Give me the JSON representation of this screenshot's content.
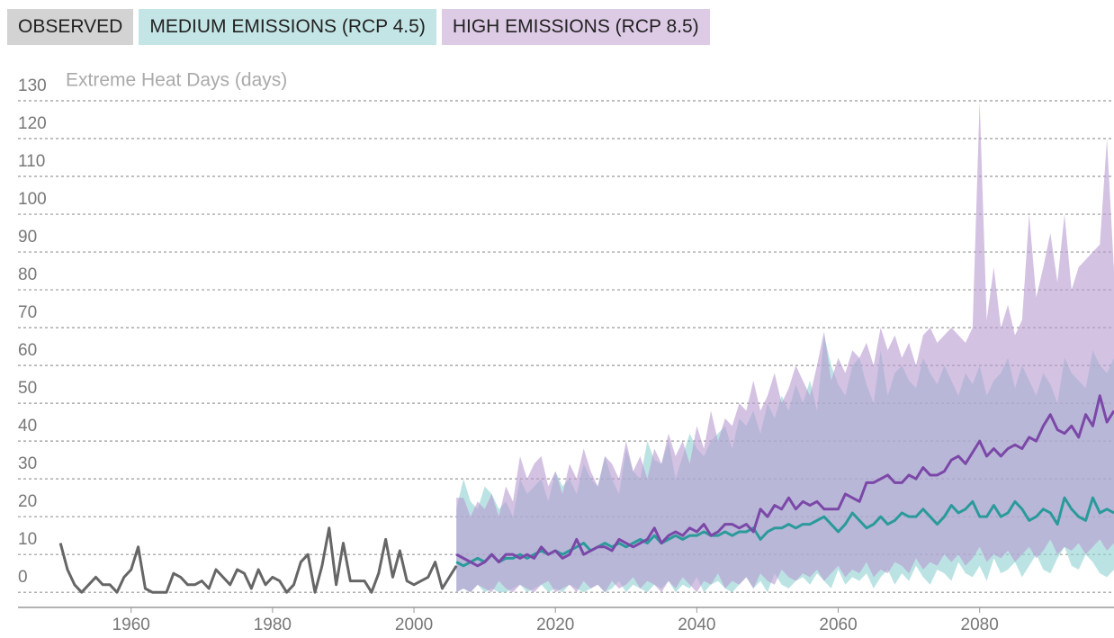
{
  "chart_data": {
    "type": "line",
    "y_axis_label": "Extreme Heat Days (days)",
    "xlim": [
      1944,
      2099
    ],
    "xticks": [
      1960,
      1980,
      2000,
      2020,
      2040,
      2060,
      2080
    ],
    "ylim": [
      -4,
      130
    ],
    "yticks": [
      0,
      10,
      20,
      30,
      40,
      50,
      60,
      70,
      80,
      90,
      100,
      110,
      120,
      130
    ],
    "grid": true,
    "series": [
      {
        "name": "OBSERVED",
        "color": "#666666",
        "legend_color": "#d3d3d3",
        "x": [
          1950,
          1951,
          1952,
          1953,
          1954,
          1955,
          1956,
          1957,
          1958,
          1959,
          1960,
          1961,
          1962,
          1963,
          1964,
          1965,
          1966,
          1967,
          1968,
          1969,
          1970,
          1971,
          1972,
          1973,
          1974,
          1975,
          1976,
          1977,
          1978,
          1979,
          1980,
          1981,
          1982,
          1983,
          1984,
          1985,
          1986,
          1987,
          1988,
          1989,
          1990,
          1991,
          1992,
          1993,
          1994,
          1995,
          1996,
          1997,
          1998,
          1999,
          2000,
          2001,
          2002,
          2003,
          2004,
          2005,
          2006
        ],
        "values": [
          13,
          6,
          2,
          0,
          2,
          4,
          2,
          2,
          0,
          4,
          6,
          12,
          1,
          0,
          0,
          0,
          5,
          4,
          2,
          2,
          3,
          1,
          6,
          4,
          2,
          6,
          5,
          1,
          6,
          2,
          4,
          3,
          0,
          2,
          8,
          10,
          0,
          7,
          17,
          2,
          13,
          3,
          3,
          3,
          0,
          5,
          14,
          4,
          11,
          3,
          2,
          3,
          4,
          8,
          1,
          4,
          7
        ]
      },
      {
        "name": "MEDIUM EMISSIONS (RCP 4.5)",
        "color": "#2a9a9a",
        "fill": "#8fd0d0",
        "legend_color": "#c4e5e5",
        "x": [
          2006,
          2007,
          2008,
          2009,
          2010,
          2011,
          2012,
          2013,
          2014,
          2015,
          2016,
          2017,
          2018,
          2019,
          2020,
          2021,
          2022,
          2023,
          2024,
          2025,
          2026,
          2027,
          2028,
          2029,
          2030,
          2031,
          2032,
          2033,
          2034,
          2035,
          2036,
          2037,
          2038,
          2039,
          2040,
          2041,
          2042,
          2043,
          2044,
          2045,
          2046,
          2047,
          2048,
          2049,
          2050,
          2051,
          2052,
          2053,
          2054,
          2055,
          2056,
          2057,
          2058,
          2059,
          2060,
          2061,
          2062,
          2063,
          2064,
          2065,
          2066,
          2067,
          2068,
          2069,
          2070,
          2071,
          2072,
          2073,
          2074,
          2075,
          2076,
          2077,
          2078,
          2079,
          2080,
          2081,
          2082,
          2083,
          2084,
          2085,
          2086,
          2087,
          2088,
          2089,
          2090,
          2091,
          2092,
          2093,
          2094,
          2095,
          2096,
          2097,
          2098,
          2099
        ],
        "values": [
          8,
          7,
          8,
          9,
          8,
          10,
          8,
          9,
          9,
          10,
          9,
          10,
          11,
          10,
          11,
          10,
          11,
          12,
          13,
          11,
          12,
          13,
          12,
          13,
          12,
          13,
          14,
          13,
          15,
          13,
          14,
          15,
          14,
          15,
          15,
          16,
          15,
          15,
          16,
          15,
          16,
          16,
          17,
          14,
          16,
          17,
          17,
          18,
          17,
          18,
          18,
          19,
          20,
          18,
          16,
          18,
          21,
          19,
          17,
          18,
          20,
          18,
          19,
          21,
          20,
          20,
          22,
          20,
          18,
          20,
          23,
          21,
          22,
          24,
          20,
          20,
          23,
          20,
          21,
          24,
          22,
          19,
          20,
          22,
          21,
          18,
          25,
          22,
          20,
          19,
          25,
          21,
          22,
          21
        ],
        "low": [
          0,
          1,
          0,
          2,
          0,
          1,
          0,
          0,
          1,
          2,
          0,
          1,
          2,
          0,
          1,
          0,
          2,
          1,
          0,
          1,
          2,
          0,
          1,
          3,
          0,
          2,
          1,
          0,
          2,
          1,
          3,
          0,
          2,
          1,
          4,
          0,
          2,
          3,
          1,
          0,
          2,
          4,
          1,
          3,
          0,
          5,
          2,
          1,
          3,
          4,
          2,
          5,
          3,
          1,
          6,
          2,
          4,
          3,
          5,
          1,
          4,
          6,
          2,
          5,
          3,
          7,
          4,
          2,
          6,
          5,
          3,
          8,
          5,
          4,
          7,
          3,
          9,
          5,
          6,
          8,
          4,
          7,
          10,
          6,
          5,
          9,
          12,
          7,
          6,
          10,
          8,
          5,
          4,
          6
        ],
        "high": [
          22,
          30,
          24,
          22,
          28,
          26,
          22,
          24,
          20,
          30,
          26,
          28,
          30,
          24,
          32,
          28,
          30,
          26,
          34,
          30,
          28,
          36,
          30,
          26,
          38,
          32,
          30,
          40,
          35,
          34,
          40,
          30,
          36,
          42,
          38,
          36,
          40,
          42,
          44,
          38,
          46,
          44,
          48,
          42,
          50,
          46,
          52,
          48,
          55,
          50,
          56,
          48,
          68,
          60,
          55,
          52,
          60,
          62,
          55,
          50,
          64,
          52,
          58,
          60,
          56,
          54,
          62,
          58,
          55,
          60,
          56,
          52,
          58,
          55,
          60,
          52,
          56,
          58,
          62,
          54,
          60,
          56,
          52,
          58,
          55,
          50,
          62,
          58,
          56,
          54,
          64,
          60,
          58,
          62
        ]
      },
      {
        "name": "HIGH EMISSIONS (RCP 8.5)",
        "color": "#7b48a8",
        "fill": "#b899d0",
        "legend_color": "#ddcbe6",
        "x": [
          2006,
          2007,
          2008,
          2009,
          2010,
          2011,
          2012,
          2013,
          2014,
          2015,
          2016,
          2017,
          2018,
          2019,
          2020,
          2021,
          2022,
          2023,
          2024,
          2025,
          2026,
          2027,
          2028,
          2029,
          2030,
          2031,
          2032,
          2033,
          2034,
          2035,
          2036,
          2037,
          2038,
          2039,
          2040,
          2041,
          2042,
          2043,
          2044,
          2045,
          2046,
          2047,
          2048,
          2049,
          2050,
          2051,
          2052,
          2053,
          2054,
          2055,
          2056,
          2057,
          2058,
          2059,
          2060,
          2061,
          2062,
          2063,
          2064,
          2065,
          2066,
          2067,
          2068,
          2069,
          2070,
          2071,
          2072,
          2073,
          2074,
          2075,
          2076,
          2077,
          2078,
          2079,
          2080,
          2081,
          2082,
          2083,
          2084,
          2085,
          2086,
          2087,
          2088,
          2089,
          2090,
          2091,
          2092,
          2093,
          2094,
          2095,
          2096,
          2097,
          2098,
          2099
        ],
        "values": [
          10,
          9,
          8,
          7,
          8,
          10,
          8,
          10,
          10,
          9,
          10,
          9,
          12,
          10,
          11,
          9,
          10,
          14,
          10,
          11,
          12,
          12,
          11,
          14,
          13,
          12,
          13,
          14,
          17,
          13,
          15,
          16,
          15,
          17,
          16,
          18,
          15,
          16,
          18,
          18,
          17,
          18,
          16,
          22,
          20,
          23,
          22,
          25,
          22,
          24,
          23,
          24,
          22,
          22,
          22,
          26,
          25,
          24,
          29,
          29,
          30,
          31,
          29,
          29,
          31,
          30,
          33,
          31,
          31,
          32,
          35,
          36,
          34,
          37,
          40,
          36,
          38,
          36,
          38,
          39,
          38,
          41,
          40,
          44,
          47,
          43,
          42,
          44,
          41,
          47,
          44,
          52,
          45,
          48
        ],
        "low": [
          0,
          1,
          0,
          2,
          1,
          0,
          3,
          1,
          0,
          2,
          1,
          0,
          2,
          3,
          0,
          1,
          2,
          0,
          3,
          1,
          2,
          0,
          3,
          1,
          2,
          4,
          1,
          3,
          2,
          0,
          3,
          1,
          4,
          2,
          0,
          3,
          2,
          5,
          1,
          3,
          2,
          4,
          1,
          5,
          3,
          2,
          6,
          4,
          3,
          5,
          4,
          6,
          3,
          5,
          7,
          4,
          6,
          5,
          8,
          4,
          6,
          5,
          8,
          7,
          5,
          9,
          6,
          8,
          7,
          10,
          8,
          10,
          7,
          9,
          12,
          8,
          10,
          9,
          11,
          8,
          10,
          12,
          9,
          11,
          14,
          10,
          12,
          11,
          13,
          10,
          12,
          14,
          11,
          13
        ],
        "high": [
          25,
          25,
          20,
          24,
          22,
          26,
          20,
          28,
          24,
          36,
          30,
          34,
          36,
          28,
          32,
          26,
          34,
          30,
          38,
          32,
          28,
          36,
          34,
          30,
          40,
          32,
          36,
          30,
          38,
          34,
          42,
          36,
          40,
          34,
          44,
          38,
          48,
          40,
          46,
          44,
          50,
          48,
          56,
          48,
          52,
          58,
          50,
          54,
          60,
          56,
          52,
          60,
          69,
          56,
          62,
          58,
          64,
          62,
          66,
          60,
          70,
          64,
          68,
          62,
          66,
          60,
          68,
          70,
          66,
          68,
          70,
          68,
          66,
          70,
          130,
          72,
          86,
          70,
          76,
          68,
          72,
          100,
          78,
          86,
          95,
          82,
          100,
          80,
          86,
          88,
          90,
          92,
          120,
          85
        ]
      }
    ]
  }
}
